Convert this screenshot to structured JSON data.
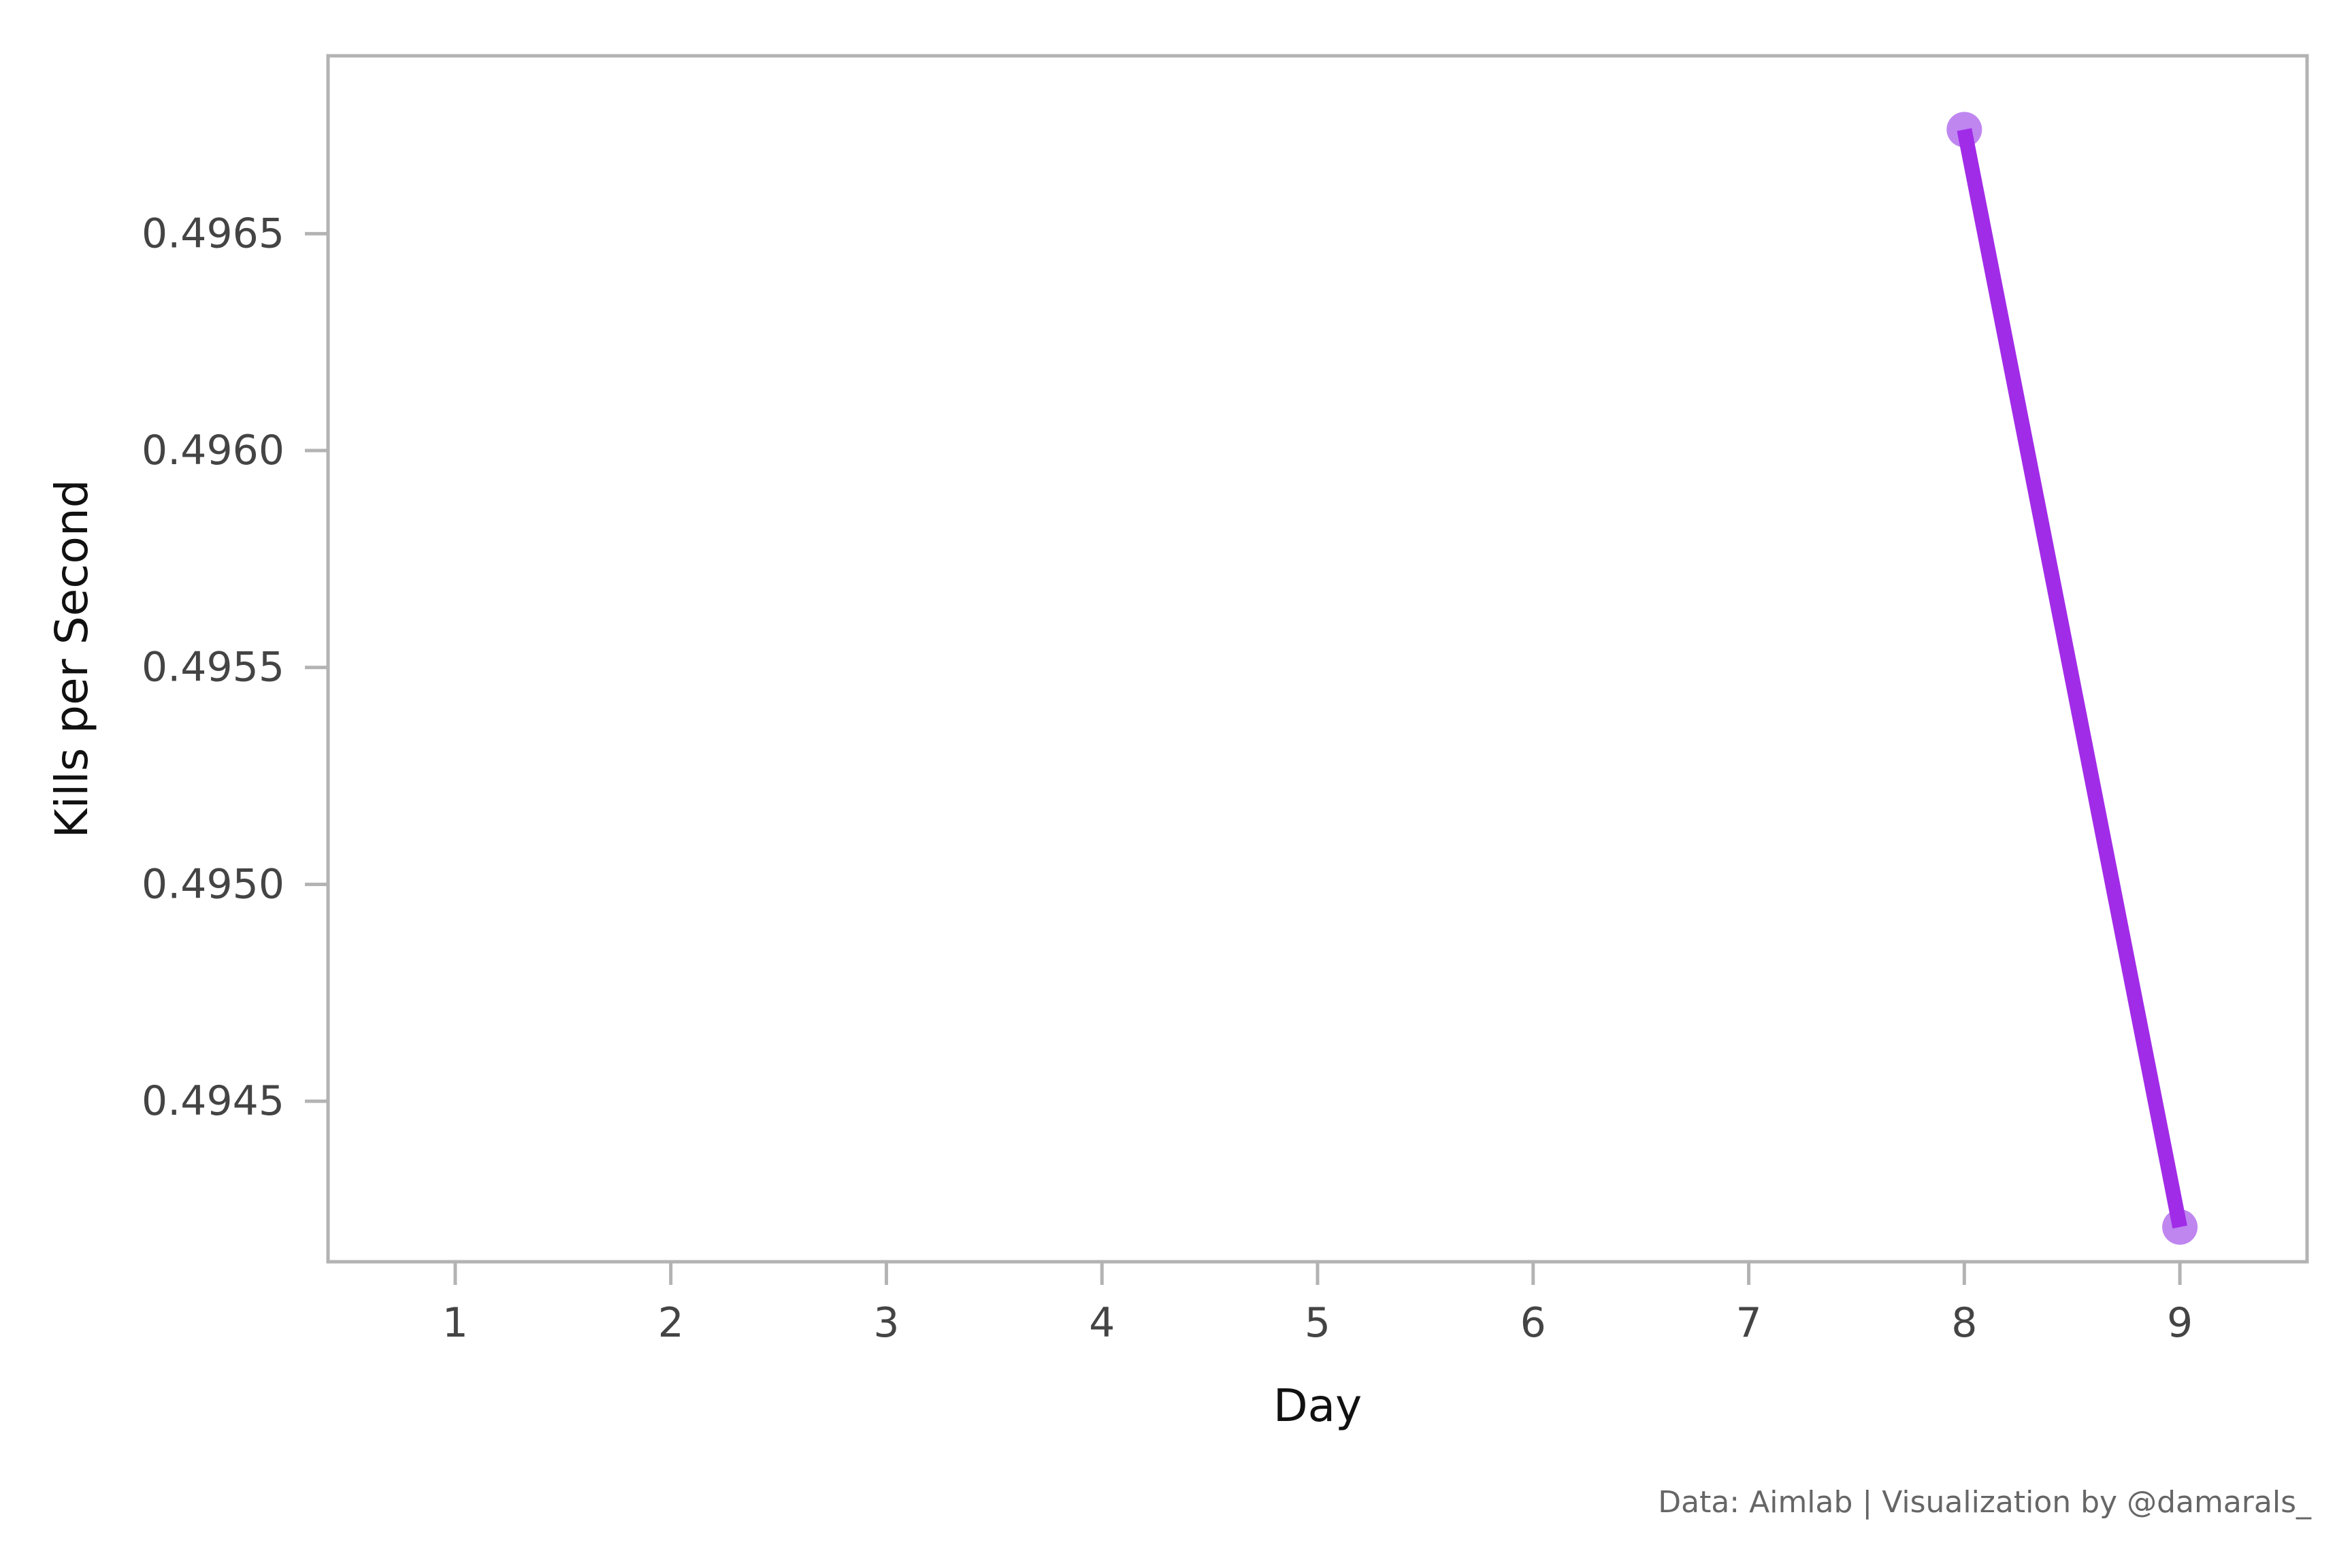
{
  "chart_data": {
    "type": "line",
    "title": "",
    "xlabel": "Day",
    "ylabel": "Kills per Second",
    "x": [
      8,
      9
    ],
    "series": [
      {
        "values": [
          0.49674,
          0.49421
        ]
      }
    ],
    "xticks": [
      "1",
      "2",
      "3",
      "4",
      "5",
      "6",
      "7",
      "8",
      "9"
    ],
    "yticks": [
      "0.4945",
      "0.4950",
      "0.4955",
      "0.4960",
      "0.4965"
    ],
    "xlim": [
      0.41,
      9.59
    ],
    "ylim": [
      0.49413,
      0.49691
    ],
    "grid": false,
    "legend": "none",
    "line_color": "#A12CE8",
    "marker_color": "#B879EE",
    "frame_color": "#B3B3B3",
    "annotation": "Data: Aimlab | Visualization by @damarals_"
  }
}
